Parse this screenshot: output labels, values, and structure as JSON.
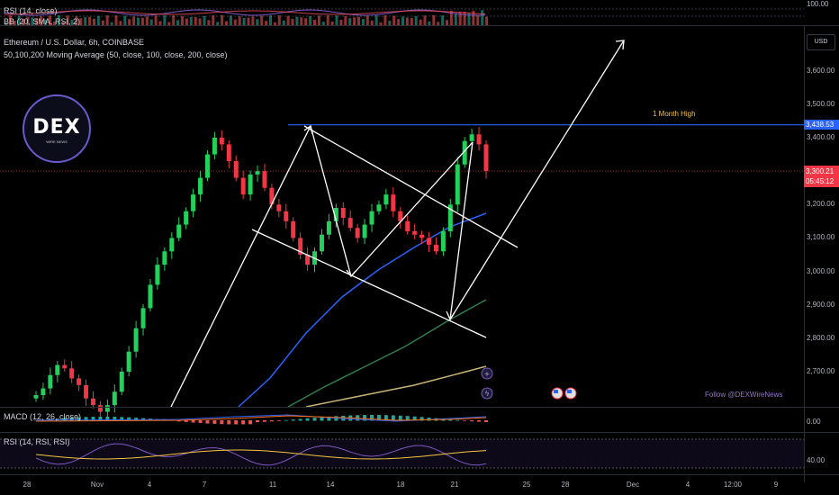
{
  "top_panel": {
    "rsi_label": "RSI (14, close)",
    "bb_label": "BB (20, SMA, RSI, 2)",
    "scale_label": "100.00"
  },
  "header": {
    "title": "Ethereum / U.S. Dollar, 6h, COINBASE",
    "ma_label": "50,100,200 Moving Average (50, close, 100, close, 200, close)"
  },
  "currency": "USD",
  "logo": {
    "brand": "DEX",
    "sub": "WIRE NEWS"
  },
  "annotations": {
    "month_high": "1 Month High",
    "follow": "Follow @DEXWireNews"
  },
  "price_tags": {
    "high": "3,438.53",
    "current": "3,300.21",
    "countdown": "05:45:12"
  },
  "macd": {
    "label": "MACD (12, 26, close)",
    "scale": "0.00"
  },
  "rsi": {
    "label": "RSI (14, RSI, RSI)",
    "scale": "40.00"
  },
  "colors": {
    "up": "#089981",
    "up_bright": "#22d15a",
    "down": "#f23645",
    "ma50": "#2962ff",
    "ma100": "#1b5e3b",
    "ma200": "#c8b27a",
    "high_line": "#2962ff",
    "current_tag": "#f23645",
    "high_tag": "#2962ff",
    "month_high_text": "#f5c542",
    "follow_text": "#9575cd"
  },
  "chart_data": {
    "type": "candlestick",
    "title": "Ethereum / U.S. Dollar, 6h, COINBASE",
    "y_ticks": [
      3600,
      3500,
      3400,
      3200,
      3100,
      3000,
      2900,
      2800,
      2700
    ],
    "y_tick_labels": [
      "3,600.00",
      "3,500.00",
      "3,400.00",
      "3,200.00",
      "3,100.00",
      "3,000.00",
      "2,900.00",
      "2,800.00",
      "2,700.00"
    ],
    "ylim": [
      2620,
      3720
    ],
    "x_ticks": [
      "28",
      "Nov",
      "4",
      "7",
      "11",
      "14",
      "18",
      "21",
      "25",
      "28",
      "Dec",
      "4",
      "12:00",
      "9"
    ],
    "month_high": 3438.53,
    "current_price": 3300.21,
    "closes": [
      2630,
      2650,
      2690,
      2720,
      2710,
      2680,
      2660,
      2620,
      2600,
      2580,
      2600,
      2640,
      2700,
      2760,
      2830,
      2890,
      2960,
      3020,
      3060,
      3100,
      3140,
      3180,
      3230,
      3280,
      3350,
      3400,
      3380,
      3330,
      3280,
      3230,
      3290,
      3300,
      3250,
      3200,
      3180,
      3150,
      3100,
      3050,
      3020,
      3060,
      3110,
      3150,
      3190,
      3160,
      3130,
      3100,
      3140,
      3180,
      3200,
      3230,
      3180,
      3150,
      3120,
      3110,
      3100,
      3080,
      3060,
      3120,
      3200,
      3320,
      3390,
      3410,
      3380,
      3300
    ]
  }
}
